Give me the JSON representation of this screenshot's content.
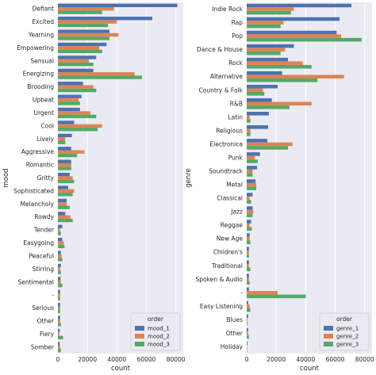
{
  "colors": {
    "background": "#eaeaf2",
    "grid": "#ffffff",
    "series": [
      "#4c72b0",
      "#dd8452",
      "#55a868"
    ]
  },
  "chart_data": [
    {
      "type": "bar",
      "orientation": "horizontal",
      "ylabel": "mood",
      "xlabel": "count",
      "xlim": [
        0,
        85000
      ],
      "xticks": [
        0,
        20000,
        40000,
        60000,
        80000
      ],
      "grid": true,
      "legend": {
        "title": "order",
        "placement": "bottom-right"
      },
      "categories": [
        "Defiant",
        "Excited",
        "Yearning",
        "Empowering",
        "Sensual",
        "Energizing",
        "Brooding",
        "Upbeat",
        "Urgent",
        "Cool",
        "Lively",
        "Aggressive",
        "Romantic",
        "Gritty",
        "Sophisticated",
        "Melancholy",
        "Rowdy",
        "Tender",
        "Easygoing",
        "Peaceful",
        "Stirring",
        "Sentimental",
        "-",
        "Serious",
        "Other",
        "Fiery",
        "Somber"
      ],
      "series": [
        {
          "name": "mood_1",
          "values": [
            81000,
            64000,
            35000,
            33000,
            26000,
            24000,
            17000,
            16000,
            15000,
            11000,
            9500,
            9000,
            9000,
            8000,
            7000,
            6000,
            5000,
            3000,
            3000,
            2000,
            2000,
            1800,
            1500,
            1500,
            1500,
            1200,
            1200
          ]
        },
        {
          "name": "mood_2",
          "values": [
            38000,
            40000,
            41000,
            28000,
            21000,
            52000,
            24000,
            14000,
            22000,
            30000,
            5000,
            18000,
            9000,
            10000,
            11000,
            6000,
            8500,
            1500,
            4000,
            2500,
            1500,
            2000,
            1500,
            1500,
            1500,
            1000,
            1500
          ]
        },
        {
          "name": "mood_3",
          "values": [
            30000,
            34000,
            35000,
            30000,
            24000,
            57000,
            26000,
            15000,
            26000,
            27000,
            5000,
            13000,
            9000,
            11000,
            10000,
            8000,
            10000,
            2000,
            4500,
            3000,
            2000,
            3000,
            1500,
            1500,
            2000,
            3500,
            2000
          ]
        }
      ]
    },
    {
      "type": "bar",
      "orientation": "horizontal",
      "ylabel": "genre",
      "xlabel": "count",
      "xlim": [
        0,
        85000
      ],
      "xticks": [
        0,
        20000,
        40000,
        60000,
        80000
      ],
      "grid": true,
      "legend": {
        "title": "order",
        "placement": "bottom-right"
      },
      "categories": [
        "Indie Rock",
        "Rap",
        "Pop",
        "Dance & House",
        "Rock",
        "Alternative",
        "Country & Folk",
        "R&B",
        "Latin",
        "Religious",
        "Electronica",
        "Punk",
        "Soundtrack",
        "Metal",
        "Classical",
        "Jazz",
        "Reggae",
        "New Age",
        "Children's",
        "Traditional",
        "Spoken & Audio",
        "-",
        "Easy Listening",
        "Blues",
        "Other",
        "Holiday"
      ],
      "series": [
        {
          "name": "genre_1",
          "values": [
            71000,
            63000,
            61000,
            32000,
            28000,
            24000,
            21000,
            17000,
            15000,
            14500,
            14000,
            9000,
            7000,
            6000,
            4000,
            4000,
            3000,
            2000,
            1500,
            1500,
            1500,
            1500,
            1000,
            1000,
            1000,
            500
          ]
        },
        {
          "name": "genre_2",
          "values": [
            32000,
            25000,
            64000,
            26000,
            38000,
            66000,
            11000,
            44000,
            2000,
            2500,
            31000,
            5500,
            4000,
            6500,
            2000,
            4500,
            2000,
            2000,
            1500,
            1500,
            1500,
            21000,
            2000,
            500,
            1000,
            300
          ]
        },
        {
          "name": "genre_3",
          "values": [
            30000,
            23000,
            78000,
            23000,
            44000,
            48000,
            12000,
            29000,
            2500,
            2500,
            28000,
            7500,
            4000,
            6500,
            3000,
            4000,
            3500,
            2500,
            1500,
            2500,
            2000,
            40000,
            2500,
            500,
            1500,
            300
          ]
        }
      ]
    }
  ]
}
